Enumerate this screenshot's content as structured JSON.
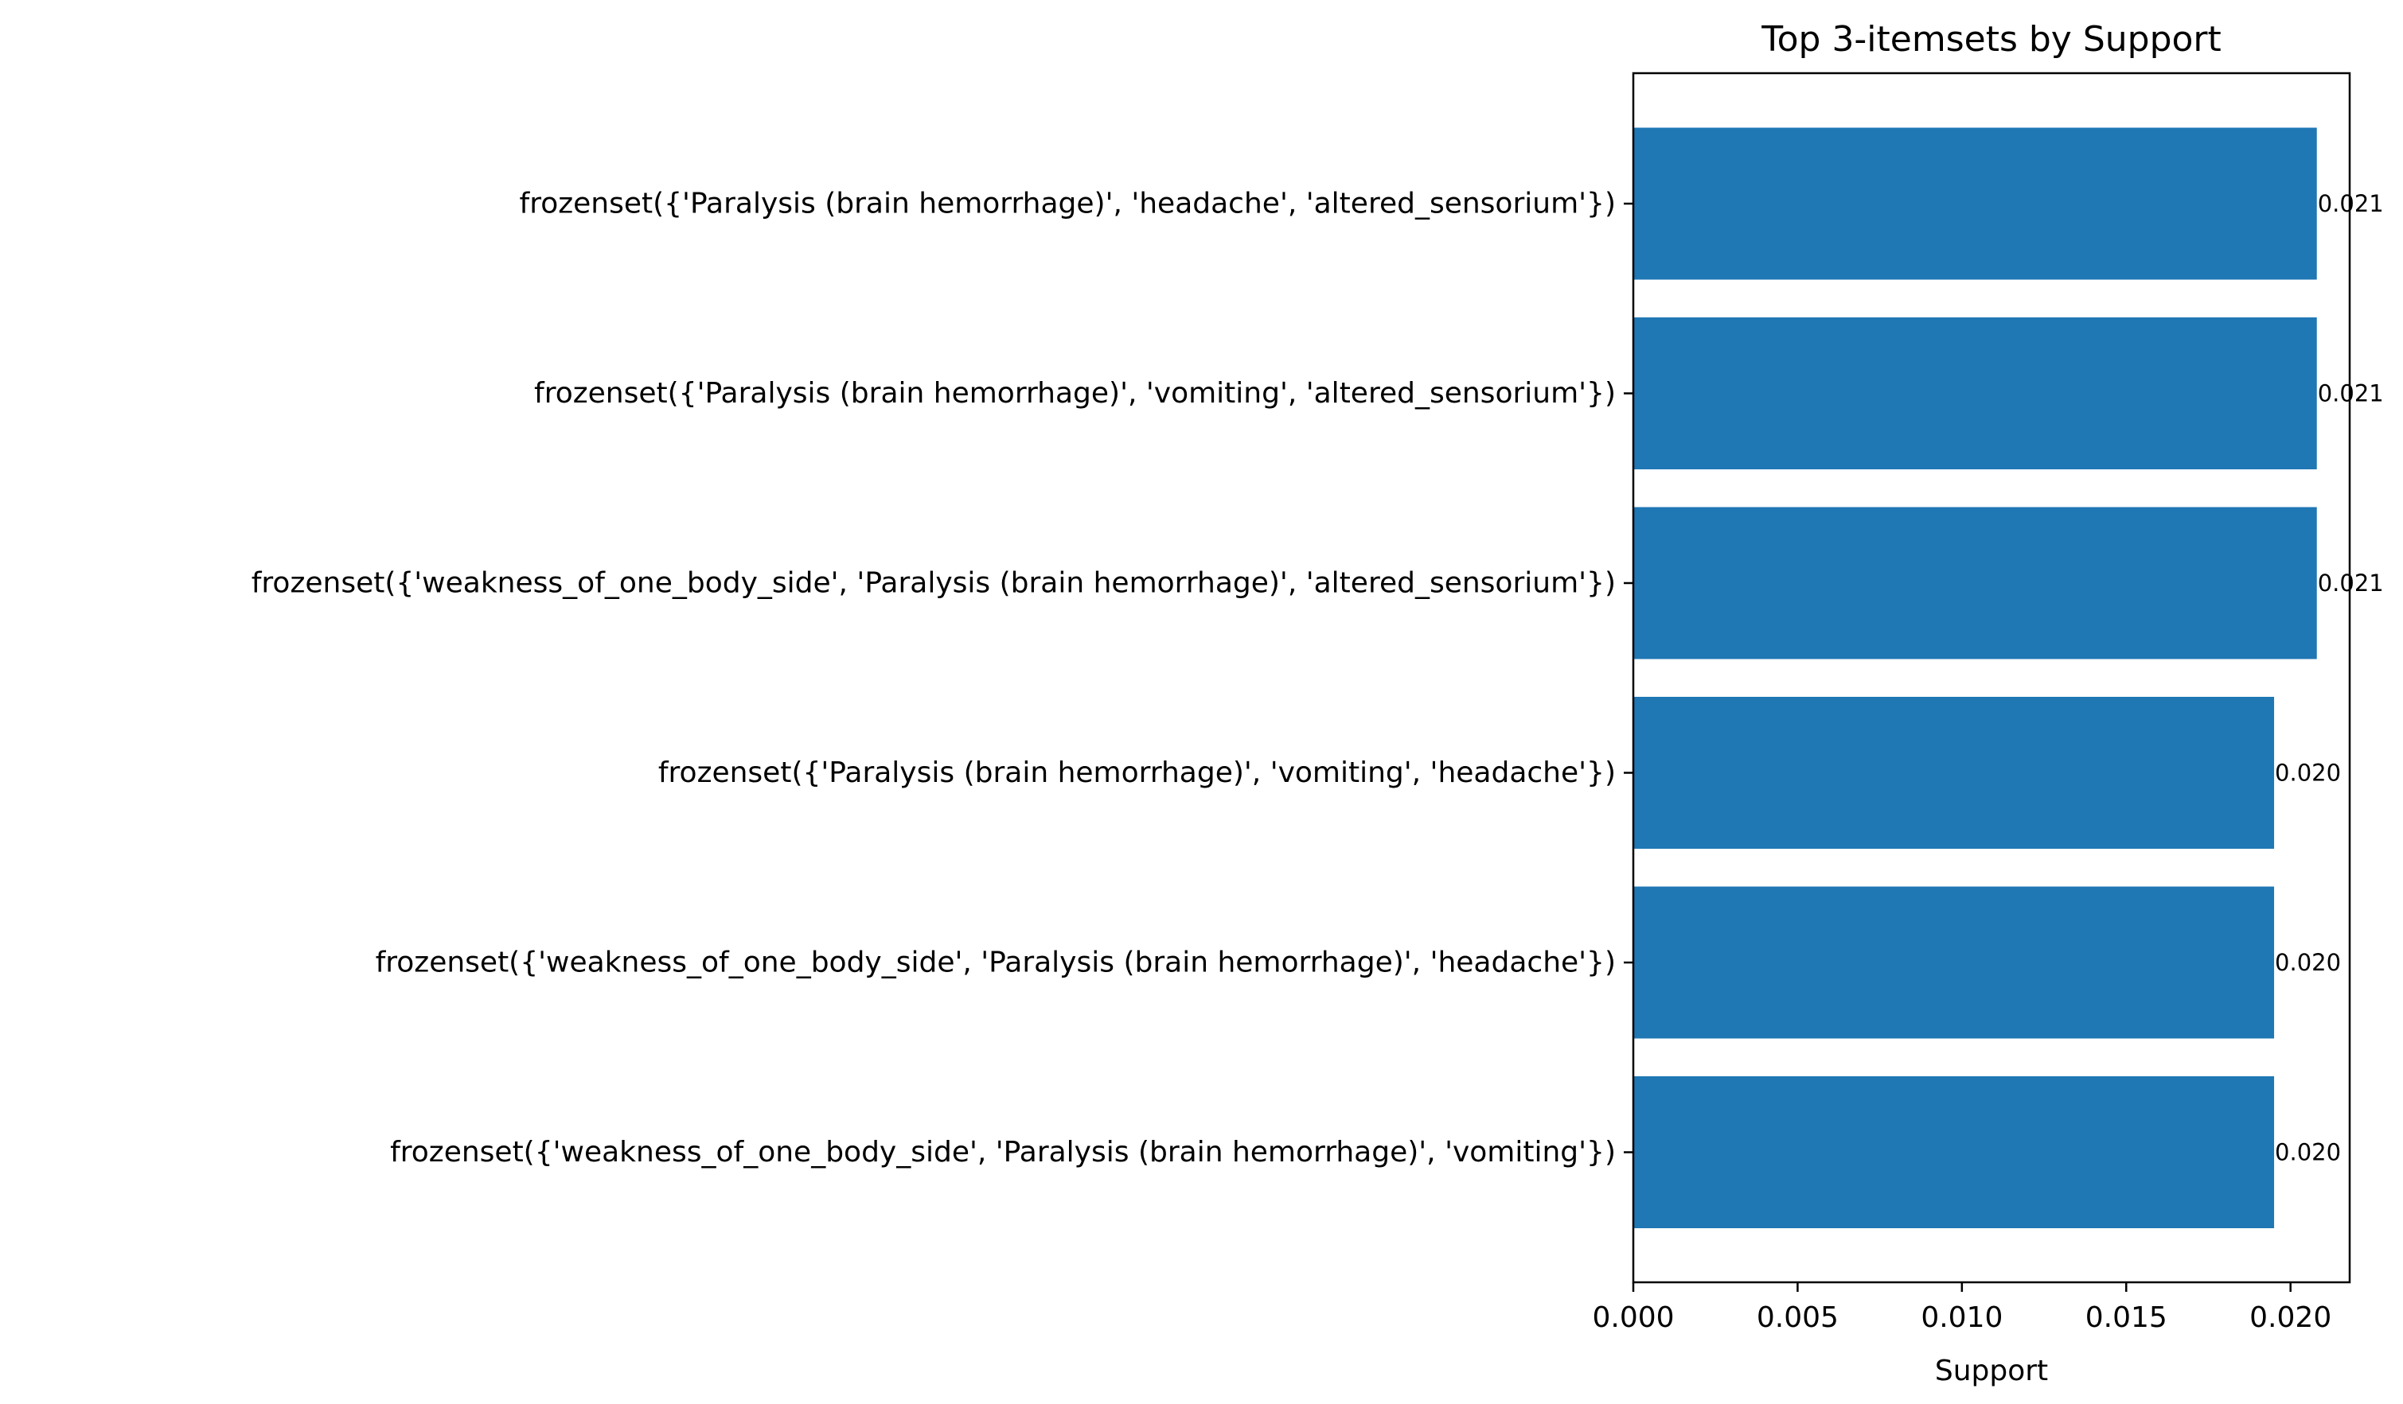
{
  "chart_data": {
    "type": "bar",
    "orientation": "horizontal",
    "title": "Top 3-itemsets by Support",
    "xlabel": "Support",
    "ylabel": "",
    "xlim": [
      0,
      0.0218
    ],
    "xticks": [
      0.0,
      0.005,
      0.01,
      0.015,
      0.02
    ],
    "xtick_labels": [
      "0.000",
      "0.005",
      "0.010",
      "0.015",
      "0.020"
    ],
    "bar_color": "#1f77b4",
    "grid": false,
    "legend": "none",
    "categories": [
      "frozenset({'Paralysis (brain hemorrhage)', 'headache', 'altered_sensorium'})",
      "frozenset({'Paralysis (brain hemorrhage)', 'vomiting', 'altered_sensorium'})",
      "frozenset({'weakness_of_one_body_side', 'Paralysis (brain hemorrhage)', 'altered_sensorium'})",
      "frozenset({'Paralysis (brain hemorrhage)', 'vomiting', 'headache'})",
      "frozenset({'weakness_of_one_body_side', 'Paralysis (brain hemorrhage)', 'headache'})",
      "frozenset({'weakness_of_one_body_side', 'Paralysis (brain hemorrhage)', 'vomiting'})"
    ],
    "values": [
      0.0208,
      0.0208,
      0.0208,
      0.0195,
      0.0195,
      0.0195
    ],
    "value_labels": [
      "0.021",
      "0.021",
      "0.021",
      "0.020",
      "0.020",
      "0.020"
    ]
  }
}
